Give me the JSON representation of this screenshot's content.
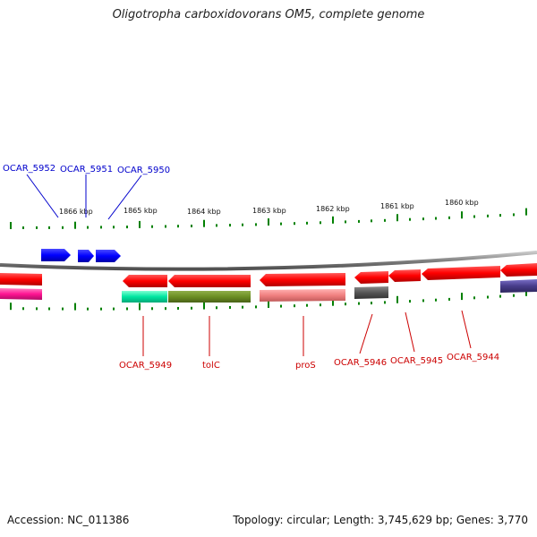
{
  "header": {
    "title": "Oligotropha carboxidovorans OM5, complete genome"
  },
  "footer": {
    "accession": "Accession: NC_011386",
    "topology": "Topology: circular; Length: 3,745,629 bp; Genes: 3,770"
  },
  "scale_labels": [
    "1866 kbp",
    "1865 kbp",
    "1864 kbp",
    "1863 kbp",
    "1862 kbp",
    "1861 kbp",
    "1860 kbp"
  ],
  "upper_gene_labels": [
    "OCAR_5952",
    "OCAR_5951",
    "OCAR_5950"
  ],
  "lower_gene_labels": [
    "OCAR_5949",
    "tolC",
    "proS",
    "OCAR_5946",
    "OCAR_5945",
    "OCAR_5944"
  ],
  "colors": {
    "forward_gene": "#0000ff",
    "reverse_gene": "#ff0000",
    "backbone": "#808080",
    "tick": "#008000",
    "upper_label": "#0000cc",
    "lower_label": "#cc0000",
    "category_pink": "#ff1493",
    "category_teal": "#00e6a0",
    "category_olive": "#6b8e23",
    "category_salmon": "#f08080",
    "category_gray": "#555555",
    "category_slate": "#483d8b"
  }
}
